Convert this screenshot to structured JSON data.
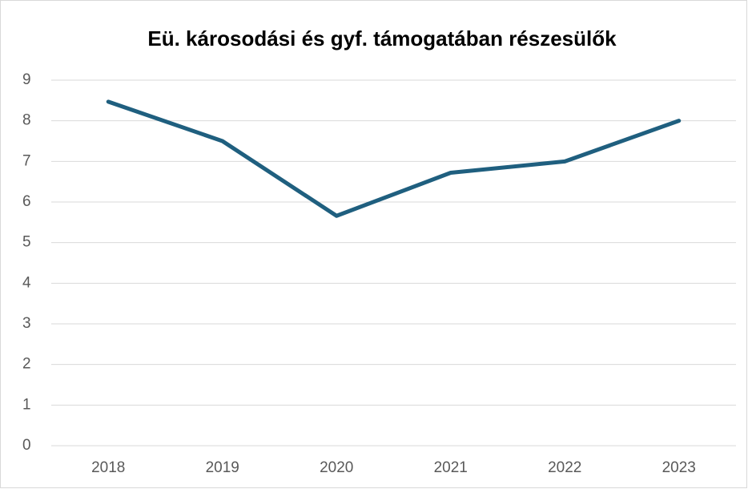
{
  "chart_data": {
    "type": "line",
    "title": "Eü. károsodási és gyf. támogatában részesülők",
    "categories": [
      "2018",
      "2019",
      "2020",
      "2021",
      "2022",
      "2023"
    ],
    "series": [
      {
        "name": "Eü. károsodási és gyf. támogatában részesülők",
        "color": "#1f5f7f",
        "values": [
          8.47,
          7.5,
          5.66,
          6.72,
          7.0,
          8.0
        ]
      }
    ],
    "ylim": [
      0,
      9
    ],
    "yticks": [
      0,
      1,
      2,
      3,
      4,
      5,
      6,
      7,
      8,
      9
    ],
    "grid": true,
    "legend": false
  }
}
